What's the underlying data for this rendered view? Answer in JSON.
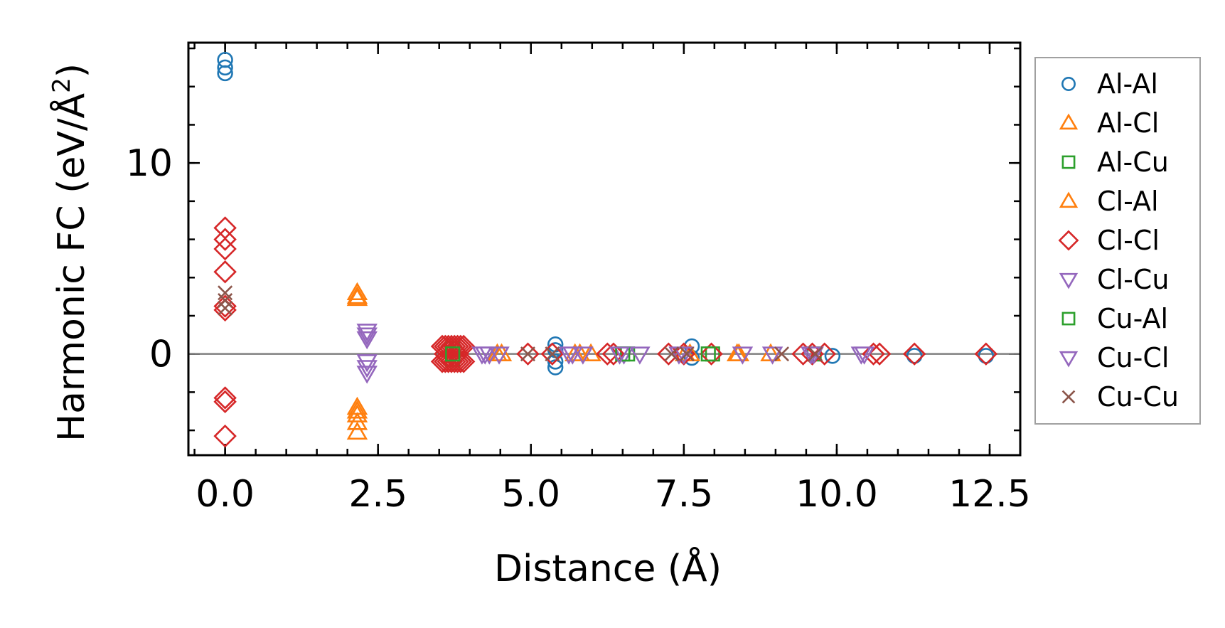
{
  "chart_data": {
    "type": "scatter",
    "title": "",
    "xlabel": "Distance (Å)",
    "ylabel": "Harmonic FC (eV/Å²)",
    "ylabel_main": "Harmonic FC (eV/Å",
    "ylabel_sup": "2",
    "ylabel_tail": ")",
    "xlim": [
      -0.6,
      13.0
    ],
    "ylim": [
      -5.3,
      16.3
    ],
    "xticks": [
      0.0,
      2.5,
      5.0,
      7.5,
      10.0,
      12.5
    ],
    "xtick_labels": [
      "0.0",
      "2.5",
      "5.0",
      "7.5",
      "10.0",
      "12.5"
    ],
    "yticks": [
      0,
      10
    ],
    "ytick_labels": [
      "0",
      "10"
    ],
    "x_minor_step": 0.5,
    "y_minor_step": 2,
    "reference_line_y": 0,
    "legend_position": "outside-right",
    "series": [
      {
        "name": "Al-Al",
        "marker": "circle",
        "color": "#1f77b4",
        "x": [
          0,
          0,
          0,
          5.4,
          5.4,
          5.4,
          5.4,
          7.63,
          7.63,
          9.93,
          11.27,
          12.44
        ],
        "y": [
          15.4,
          15.0,
          14.7,
          0.5,
          0.2,
          -0.4,
          -0.7,
          0.4,
          -0.2,
          -0.1,
          -0.1,
          -0.1
        ]
      },
      {
        "name": "Al-Cl",
        "marker": "triangle-up",
        "color": "#ff7f0e",
        "x": [
          2.16,
          2.16,
          2.16,
          2.16,
          2.16,
          2.16,
          4.52,
          5.72,
          5.98,
          7.52,
          8.37,
          8.92
        ],
        "y": [
          3.2,
          2.9,
          -2.8,
          -3.2,
          -3.6,
          -4.1,
          0.0,
          0.0,
          0.0,
          0.0,
          0.0,
          0.0
        ]
      },
      {
        "name": "Al-Cu",
        "marker": "square",
        "color": "#2ca02c",
        "x": [
          3.72,
          3.72,
          3.72,
          6.58,
          7.97,
          9.63
        ],
        "y": [
          0.3,
          0.0,
          -0.3,
          0.0,
          0.0,
          0.0
        ]
      },
      {
        "name": "Cl-Al",
        "marker": "triangle-up",
        "color": "#ff7f0e",
        "x": [
          2.16,
          2.16,
          4.45,
          5.8,
          7.6,
          8.4
        ],
        "y": [
          3.0,
          -3.0,
          0.0,
          0.0,
          0.0,
          0.0
        ]
      },
      {
        "name": "Cl-Cl",
        "marker": "diamond",
        "color": "#d62728",
        "x": [
          0,
          0,
          0,
          0,
          0,
          0,
          0,
          0,
          0,
          3.55,
          3.6,
          3.65,
          3.7,
          3.75,
          3.8,
          3.85,
          3.9,
          3.55,
          3.6,
          3.65,
          3.7,
          3.75,
          3.8,
          3.85,
          3.9,
          3.6,
          3.7,
          3.8,
          4.95,
          5.35,
          6.25,
          6.35,
          7.25,
          7.5,
          7.95,
          9.45,
          9.6,
          9.8,
          10.6,
          10.7,
          11.27,
          12.44
        ],
        "y": [
          6.6,
          6.0,
          5.5,
          4.3,
          2.5,
          2.3,
          -2.3,
          -2.5,
          -4.3,
          0.4,
          0.4,
          0.4,
          0.4,
          0.4,
          0.4,
          0.4,
          0.4,
          -0.4,
          -0.4,
          -0.4,
          -0.4,
          -0.4,
          -0.4,
          -0.4,
          -0.4,
          0.0,
          0.0,
          0.0,
          0.0,
          0.0,
          0.0,
          0.0,
          0.0,
          0.0,
          0.0,
          0.0,
          0.0,
          0.0,
          0.0,
          0.0,
          0.0,
          0.0
        ]
      },
      {
        "name": "Cl-Cu",
        "marker": "triangle-down",
        "color": "#9467bd",
        "x": [
          2.32,
          2.32,
          2.32,
          2.32,
          4.2,
          4.32,
          4.48,
          5.62,
          5.85,
          6.52,
          6.78,
          7.42,
          8.46,
          8.95,
          9.58,
          10.4
        ],
        "y": [
          1.2,
          0.8,
          -0.4,
          -1.0,
          0.0,
          0.0,
          0.0,
          0.0,
          0.0,
          0.0,
          0.0,
          0.0,
          0.0,
          0.0,
          0.0,
          0.0
        ]
      },
      {
        "name": "Cu-Al",
        "marker": "square",
        "color": "#2ca02c",
        "x": [
          3.72,
          6.5,
          7.9
        ],
        "y": [
          0.0,
          0.0,
          0.0
        ]
      },
      {
        "name": "Cu-Cl",
        "marker": "triangle-down",
        "color": "#9467bd",
        "x": [
          2.32,
          2.32,
          4.25,
          5.68,
          6.45,
          7.5,
          9.62,
          10.45
        ],
        "y": [
          1.0,
          -0.7,
          0.0,
          0.0,
          0.0,
          0.0,
          0.0,
          0.0
        ]
      },
      {
        "name": "Cu-Cu",
        "marker": "x",
        "color": "#8c564b",
        "x": [
          0,
          0,
          0,
          4.95,
          5.35,
          7.3,
          7.55,
          9.1,
          9.65
        ],
        "y": [
          3.2,
          2.8,
          2.4,
          0.0,
          0.0,
          0.0,
          0.0,
          0.0,
          0.0
        ]
      }
    ]
  }
}
